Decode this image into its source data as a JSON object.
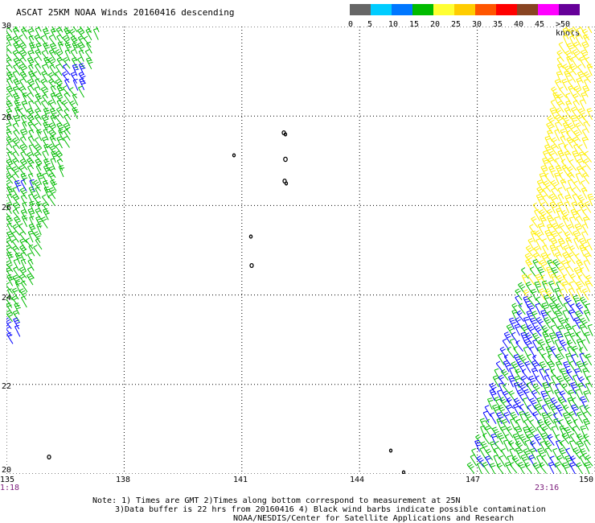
{
  "title": "ASCAT 25KM NOAA Winds 20160416 descending",
  "scale": {
    "labels": [
      "0",
      "5",
      "10",
      "15",
      "20",
      "25",
      "30",
      "35",
      "40",
      "45",
      ">50 knots"
    ],
    "colors": [
      "#666666",
      "#00ccff",
      "#0077ff",
      "#00bb00",
      "#ffff33",
      "#ffcc00",
      "#ff5500",
      "#ff0000",
      "#884422",
      "#ff00ff",
      "#660099"
    ]
  },
  "lat_labels": [
    "30",
    "28",
    "26",
    "24",
    "22",
    "20"
  ],
  "lon_labels": [
    "135",
    "138",
    "141",
    "144",
    "147",
    "150"
  ],
  "times": {
    "left": "1:18",
    "right": "23:16"
  },
  "notes": [
    "Note: 1) Times are GMT 2)Times along bottom correspond to measurement at 25N",
    "3)Data buffer is 22 hrs from 20160416 4) Black wind barbs indicate possible contamination",
    "NOAA/NESDIS/Center for Satellite Applications and Research"
  ],
  "map": {
    "lon_range": [
      135,
      150
    ],
    "lat_range": [
      20,
      30
    ],
    "grid": true,
    "wind_colors": {
      "green": "#00bb00",
      "yellow": "#ffee00",
      "blue": "#0000ff"
    }
  }
}
